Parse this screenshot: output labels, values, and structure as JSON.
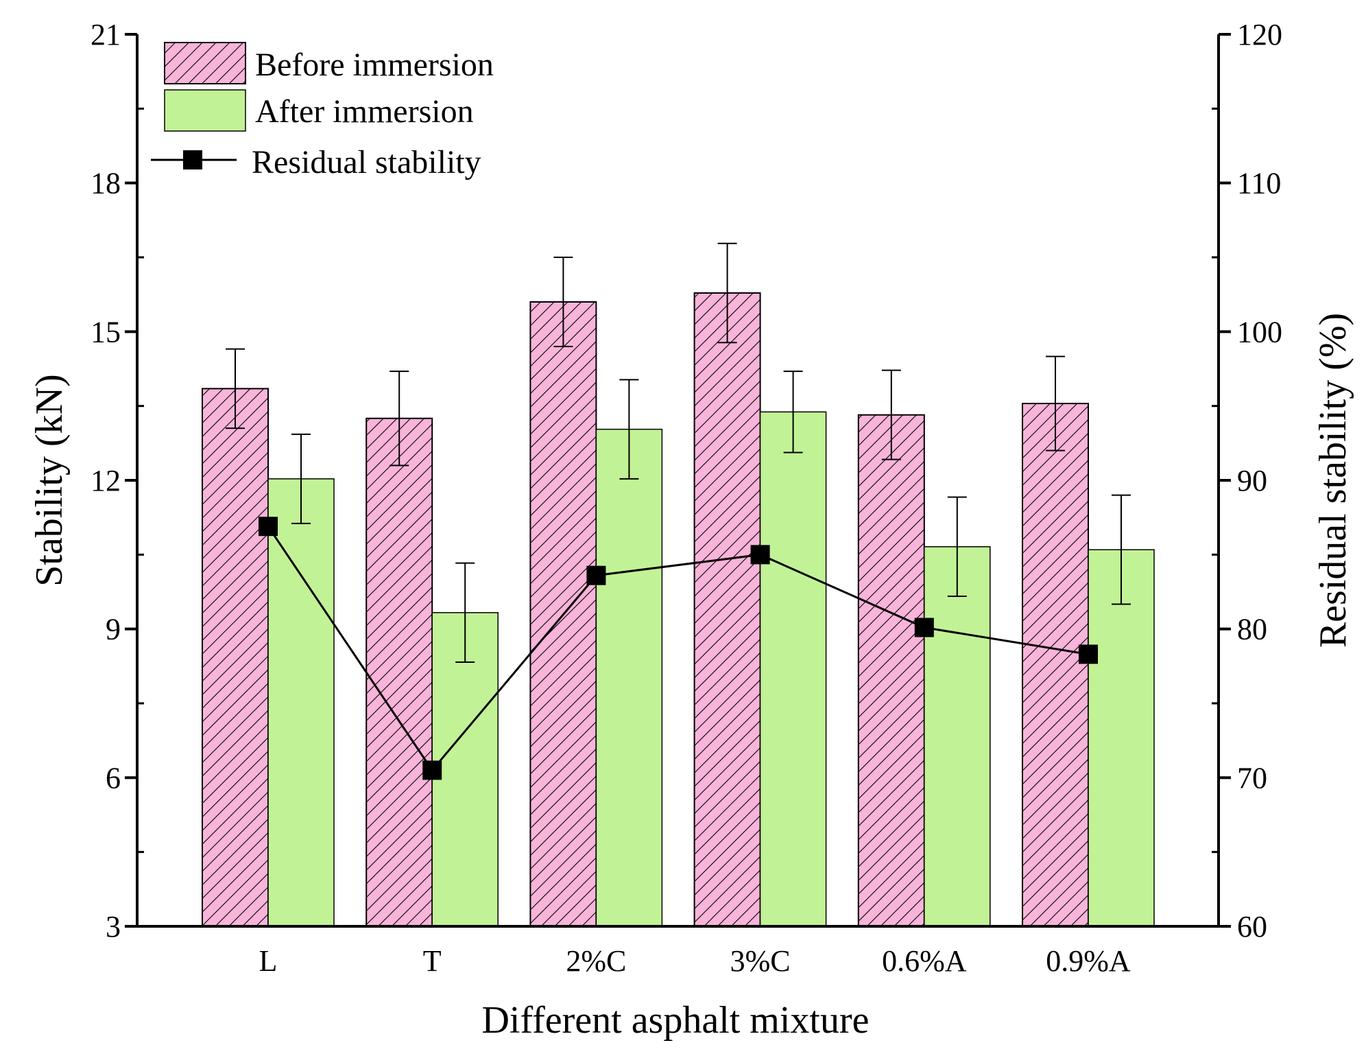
{
  "chart_data": {
    "type": "bar",
    "title": "",
    "xlabel": "Different asphalt mixture",
    "ylabel": "Stability (kN)",
    "y2label": "Residual stability (%)",
    "categories": [
      "L",
      "T",
      "2%C",
      "3%C",
      "0.6%A",
      "0.9%A"
    ],
    "ylim": [
      3,
      21
    ],
    "yticks": [
      3,
      6,
      9,
      12,
      15,
      18,
      21
    ],
    "y2lim": [
      60,
      120
    ],
    "y2ticks": [
      60,
      70,
      80,
      90,
      100,
      110,
      120
    ],
    "legend_position": "top-left",
    "series": [
      {
        "name": "Before immersion",
        "axis": "left",
        "kind": "bar",
        "color": "#f8b4d9",
        "hatch_color": "#000000",
        "values": [
          13.85,
          13.25,
          15.6,
          15.78,
          13.32,
          13.55
        ],
        "errors": [
          0.8,
          0.95,
          0.9,
          1.0,
          0.9,
          0.95
        ]
      },
      {
        "name": "After immersion",
        "axis": "left",
        "kind": "bar",
        "color": "#c2f296",
        "values": [
          12.03,
          9.33,
          13.03,
          13.38,
          10.66,
          10.6
        ],
        "errors": [
          0.9,
          1.0,
          1.0,
          0.82,
          1.0,
          1.1
        ]
      },
      {
        "name": "Residual stability",
        "axis": "right",
        "kind": "line",
        "color": "#000000",
        "values": [
          86.9,
          70.5,
          83.6,
          85.0,
          80.1,
          78.3
        ]
      }
    ]
  }
}
